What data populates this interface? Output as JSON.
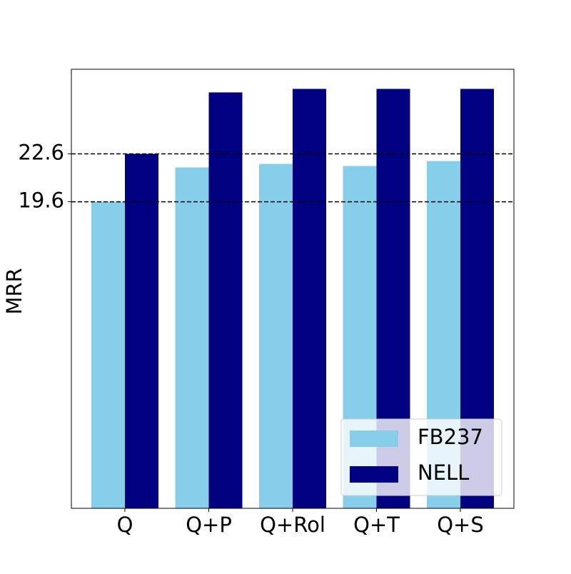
{
  "chart_data": {
    "type": "bar",
    "y_label": "MRR",
    "categories": [
      "Q",
      "Q+P",
      "Q+Rol",
      "Q+T",
      "Q+S"
    ],
    "series": [
      {
        "name": "FB237",
        "color": "#87ceeb",
        "values": [
          19.6,
          21.75,
          21.97,
          21.84,
          22.15
        ]
      },
      {
        "name": "NELL",
        "color": "#000080",
        "values": [
          22.6,
          26.45,
          26.67,
          26.67,
          26.67
        ]
      }
    ],
    "ylim": [
      0.4,
      27.9
    ],
    "yticks": [
      19.6,
      22.6
    ],
    "grid": true,
    "grid_style": "dashed",
    "legend": "lower right"
  }
}
